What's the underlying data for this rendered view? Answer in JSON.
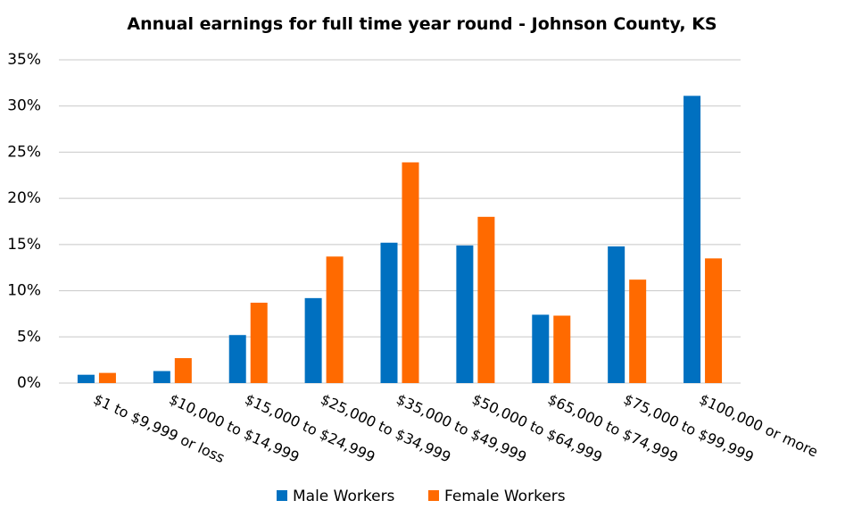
{
  "chart_data": {
    "type": "bar",
    "title": "Annual earnings for full time year round - Johnson County, KS",
    "categories": [
      "$1 to $9,999 or loss",
      "$10,000 to $14,999",
      "$15,000 to $24,999",
      "$25,000 to $34,999",
      "$35,000 to $49,999",
      "$50,000 to $64,999",
      "$65,000 to $74,999",
      "$75,000 to $99,999",
      "$100,000 or more"
    ],
    "series": [
      {
        "name": "Male Workers",
        "color": "#0070c0",
        "values": [
          0.9,
          1.3,
          5.2,
          9.2,
          15.2,
          14.9,
          7.4,
          14.8,
          31.1
        ]
      },
      {
        "name": "Female Workers",
        "color": "#ff6a00",
        "values": [
          1.1,
          2.7,
          8.7,
          13.7,
          23.9,
          18.0,
          7.3,
          11.2,
          13.5
        ]
      }
    ],
    "ylim": [
      0,
      35
    ],
    "yticks": [
      {
        "value": 0,
        "label": "0%"
      },
      {
        "value": 5,
        "label": "5%"
      },
      {
        "value": 10,
        "label": "10%"
      },
      {
        "value": 15,
        "label": "15%"
      },
      {
        "value": 20,
        "label": "20%"
      },
      {
        "value": 25,
        "label": "25%"
      },
      {
        "value": 30,
        "label": "30%"
      },
      {
        "value": 35,
        "label": "35%"
      }
    ],
    "grid": true,
    "legend": "bottom"
  }
}
